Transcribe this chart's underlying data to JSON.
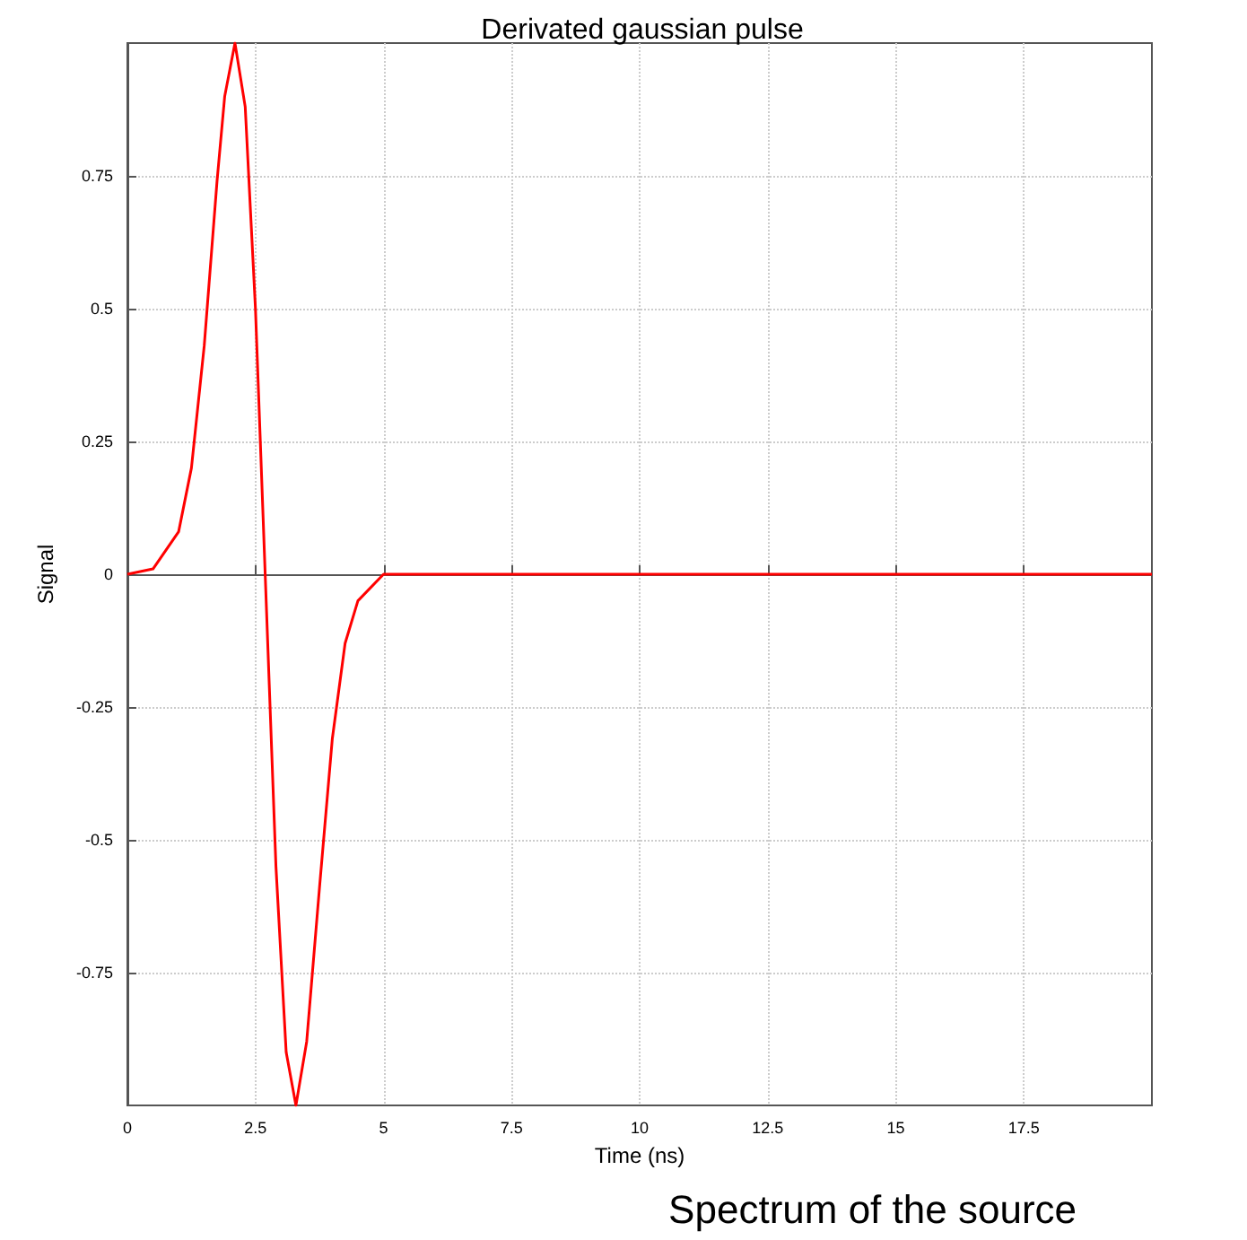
{
  "chart_data": {
    "type": "line",
    "title": "Derivated gaussian pulse",
    "xlabel": "Time (ns)",
    "ylabel": "Signal",
    "annotations": [
      "Spectrum of the source"
    ],
    "series": [
      {
        "color": "#ff0000",
        "x": [
          0,
          0.5,
          1,
          1.25,
          1.5,
          1.75,
          1.9,
          2.1,
          2.3,
          2.5,
          2.69,
          2.9,
          3.1,
          3.29,
          3.5,
          3.75,
          4,
          4.25,
          4.5,
          5,
          6,
          10,
          15,
          20
        ],
        "values": [
          0,
          0.01,
          0.08,
          0.2,
          0.43,
          0.74,
          0.9,
          1,
          0.88,
          0.5,
          0,
          -0.55,
          -0.9,
          -1,
          -0.88,
          -0.59,
          -0.31,
          -0.13,
          -0.05,
          0,
          0,
          0,
          0,
          0
        ]
      }
    ],
    "xlim": [
      0,
      20
    ],
    "xticks": [
      0,
      2.5,
      5,
      7.5,
      10,
      12.5,
      15,
      17.5
    ],
    "ylim": [
      -1,
      1
    ],
    "yticks": [
      -0.75,
      -0.5,
      -0.25,
      0,
      0.25,
      0.5,
      0.75
    ],
    "grid": true,
    "marker": "none",
    "line_style": "solid"
  }
}
